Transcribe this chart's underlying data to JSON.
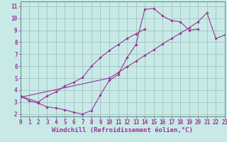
{
  "background_color": "#c8eae6",
  "line_color": "#993399",
  "grid_color": "#99bbbb",
  "xlabel": "Windchill (Refroidissement éolien,°C)",
  "xlim": [
    0,
    23
  ],
  "ylim": [
    1.8,
    11.4
  ],
  "xticks": [
    0,
    1,
    2,
    3,
    4,
    5,
    6,
    7,
    8,
    9,
    10,
    11,
    12,
    13,
    14,
    15,
    16,
    17,
    18,
    19,
    20,
    21,
    22,
    23
  ],
  "yticks": [
    2,
    3,
    4,
    5,
    6,
    7,
    8,
    9,
    10,
    11
  ],
  "line1_x": [
    0,
    1,
    2,
    3,
    4,
    5,
    6,
    7,
    8,
    9,
    10,
    11,
    12,
    13,
    14,
    15,
    16,
    17,
    18,
    19,
    20
  ],
  "line1_y": [
    3.5,
    3.1,
    2.9,
    2.6,
    2.5,
    2.35,
    2.15,
    2.0,
    2.3,
    3.6,
    4.8,
    5.3,
    6.7,
    7.8,
    10.75,
    10.8,
    10.2,
    9.8,
    9.7,
    9.0,
    9.1
  ],
  "line2_x": [
    0,
    2,
    3,
    4,
    5,
    6,
    7,
    8,
    9,
    10,
    11,
    12,
    13,
    14
  ],
  "line2_y": [
    3.5,
    3.0,
    3.5,
    3.85,
    4.35,
    4.65,
    5.05,
    6.0,
    6.7,
    7.3,
    7.8,
    8.3,
    8.7,
    9.1
  ],
  "line3_x": [
    0,
    10,
    11,
    12,
    13,
    14,
    15,
    16,
    17,
    18,
    19,
    20,
    21,
    22,
    23
  ],
  "line3_y": [
    3.4,
    5.0,
    5.45,
    5.95,
    6.4,
    6.9,
    7.35,
    7.85,
    8.3,
    8.75,
    9.2,
    9.7,
    10.45,
    8.3,
    8.6
  ],
  "fontsize_label": 6.5,
  "fontsize_tick": 5.5,
  "fig_width": 3.2,
  "fig_height": 2.0,
  "dpi": 100
}
